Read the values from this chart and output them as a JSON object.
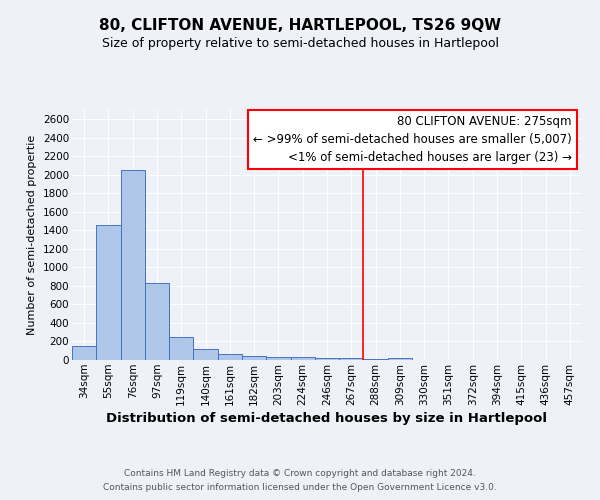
{
  "title": "80, CLIFTON AVENUE, HARTLEPOOL, TS26 9QW",
  "subtitle": "Size of property relative to semi-detached houses in Hartlepool",
  "xlabel": "Distribution of semi-detached houses by size in Hartlepool",
  "ylabel": "Number of semi-detached propertie",
  "footnote1": "Contains HM Land Registry data © Crown copyright and database right 2024.",
  "footnote2": "Contains public sector information licensed under the Open Government Licence v3.0.",
  "bar_labels": [
    "34sqm",
    "55sqm",
    "76sqm",
    "97sqm",
    "119sqm",
    "140sqm",
    "161sqm",
    "182sqm",
    "203sqm",
    "224sqm",
    "246sqm",
    "267sqm",
    "288sqm",
    "309sqm",
    "330sqm",
    "351sqm",
    "372sqm",
    "394sqm",
    "415sqm",
    "436sqm",
    "457sqm"
  ],
  "bar_values": [
    155,
    1460,
    2050,
    830,
    250,
    115,
    65,
    40,
    35,
    30,
    25,
    20,
    15,
    20,
    0,
    0,
    0,
    0,
    0,
    0,
    0
  ],
  "bar_color": "#aec6e8",
  "bar_edge_color": "#4472c4",
  "vline_x": 11.5,
  "vline_color": "red",
  "annotation_title": "80 CLIFTON AVENUE: 275sqm",
  "annotation_line1": "← >99% of semi-detached houses are smaller (5,007)",
  "annotation_line2": "<1% of semi-detached houses are larger (23) →",
  "annotation_box_color": "white",
  "annotation_box_edge": "red",
  "ylim": [
    0,
    2700
  ],
  "yticks": [
    0,
    200,
    400,
    600,
    800,
    1000,
    1200,
    1400,
    1600,
    1800,
    2000,
    2200,
    2400,
    2600
  ],
  "bg_color": "#eef2f8",
  "plot_bg_color": "#eef2f8",
  "title_fontsize": 11,
  "subtitle_fontsize": 9,
  "xlabel_fontsize": 9.5,
  "ylabel_fontsize": 8,
  "tick_fontsize": 7.5,
  "annotation_fontsize": 8.5,
  "footnote_fontsize": 6.5
}
